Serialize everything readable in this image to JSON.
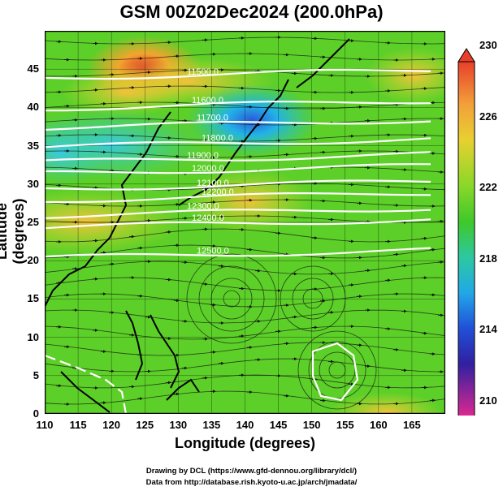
{
  "title": "GSM 00Z02Dec2024 (200.0hPa)",
  "xaxis": {
    "label": "Longitude (degrees)",
    "ticks": [
      "110",
      "115",
      "120",
      "125",
      "130",
      "135",
      "140",
      "145",
      "150",
      "155",
      "160",
      "165"
    ],
    "range": [
      110,
      170
    ]
  },
  "yaxis": {
    "label": "Latitude  (degrees)",
    "ticks": [
      "0",
      "5",
      "10",
      "15",
      "20",
      "25",
      "30",
      "35",
      "40",
      "45"
    ],
    "range": [
      0,
      50
    ]
  },
  "colorbar": {
    "ticks": [
      "230",
      "226",
      "222",
      "218",
      "214",
      "210"
    ],
    "range": [
      210,
      230
    ]
  },
  "contours": [
    {
      "label": "11500.0",
      "lat": 44.5
    },
    {
      "label": "11600.0",
      "lat": 40.5
    },
    {
      "label": "11700.0",
      "lat": 38.0
    },
    {
      "label": "11800.0",
      "lat": 35.5
    },
    {
      "label": "11900.0",
      "lat": 33.5
    },
    {
      "label": "12000.0",
      "lat": 32.0
    },
    {
      "label": "12100.0",
      "lat": 30.0
    },
    {
      "label": "12200.0",
      "lat": 28.5
    },
    {
      "label": "12300.0",
      "lat": 26.5
    },
    {
      "label": "12400.0",
      "lat": 25.0
    },
    {
      "label": "12500.0",
      "lat": 21.0
    }
  ],
  "credits": {
    "line1": "Drawing by DCL (https://www.gfd-dennou.org/library/dcl/)",
    "line2": "Data from http://database.rish.kyoto-u.ac.jp/arch/jmadata/"
  },
  "colors": {
    "warm": "#e0302a",
    "cool": "#2a5ad8",
    "mid": "#5ccf28"
  }
}
